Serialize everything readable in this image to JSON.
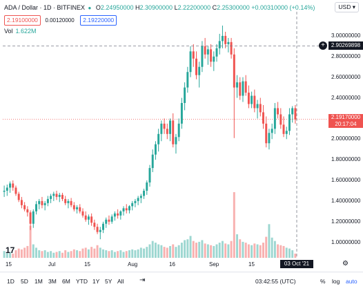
{
  "legend": {
    "symbol": "ADA / Dollar · 1D · BITFINEX",
    "o_label": "O",
    "o_value": "2.24950000",
    "h_label": "H",
    "h_value": "2.30900000",
    "l_label": "L",
    "l_value": "2.22200000",
    "c_label": "C",
    "c_value": "2.25300000",
    "change": "+0.00310000 (+0.14%)",
    "bid": "2.19100000",
    "spread": "0.00120000",
    "ask": "2.19220000",
    "vol_label": "Vol",
    "vol_value": "1.622M"
  },
  "currency": "USD ▾",
  "y_axis": {
    "ticks": [
      "3.00000000",
      "2.80000000",
      "2.60000000",
      "2.40000000",
      "2.20000000",
      "2.00000000",
      "1.80000000",
      "1.60000000",
      "1.40000000",
      "1.20000000",
      "1.00000000"
    ]
  },
  "crosshair": {
    "price": "2.90269898",
    "date": "03 Oct '21"
  },
  "last_price": {
    "price": "2.19170000",
    "countdown": "20:17:04"
  },
  "x_axis": {
    "ticks": [
      "15",
      "Jul",
      "15",
      "Aug",
      "16",
      "Sep",
      "15"
    ]
  },
  "bottom": {
    "timeframes": [
      "1D",
      "5D",
      "1M",
      "3M",
      "6M",
      "YTD",
      "1Y",
      "5Y",
      "All"
    ],
    "clock": "03:42:55 (UTC)",
    "percent": "%",
    "log": "log",
    "auto": "auto"
  },
  "colors": {
    "up": "#26a69a",
    "down": "#ef5350",
    "crosshair": "#787b86"
  },
  "chart_data": {
    "type": "candlestick",
    "ylim": [
      0.85,
      3.1
    ],
    "candles": [
      [
        1.49,
        1.55,
        1.44,
        1.5
      ],
      [
        1.5,
        1.56,
        1.45,
        1.53
      ],
      [
        1.53,
        1.59,
        1.48,
        1.57
      ],
      [
        1.57,
        1.6,
        1.5,
        1.53
      ],
      [
        1.53,
        1.55,
        1.45,
        1.47
      ],
      [
        1.47,
        1.49,
        1.39,
        1.41
      ],
      [
        1.41,
        1.44,
        1.33,
        1.36
      ],
      [
        1.36,
        1.39,
        1.3,
        1.32
      ],
      [
        1.32,
        1.35,
        1.25,
        1.29
      ],
      [
        1.29,
        1.31,
        1.12,
        1.18
      ],
      [
        1.18,
        1.32,
        1.14,
        1.3
      ],
      [
        1.3,
        1.4,
        1.27,
        1.37
      ],
      [
        1.37,
        1.42,
        1.32,
        1.4
      ],
      [
        1.4,
        1.44,
        1.33,
        1.36
      ],
      [
        1.36,
        1.4,
        1.31,
        1.38
      ],
      [
        1.38,
        1.45,
        1.35,
        1.42
      ],
      [
        1.42,
        1.47,
        1.38,
        1.45
      ],
      [
        1.45,
        1.49,
        1.4,
        1.47
      ],
      [
        1.47,
        1.5,
        1.41,
        1.44
      ],
      [
        1.44,
        1.48,
        1.39,
        1.46
      ],
      [
        1.46,
        1.48,
        1.4,
        1.42
      ],
      [
        1.42,
        1.45,
        1.36,
        1.38
      ],
      [
        1.38,
        1.42,
        1.33,
        1.4
      ],
      [
        1.4,
        1.43,
        1.34,
        1.36
      ],
      [
        1.36,
        1.39,
        1.3,
        1.32
      ],
      [
        1.32,
        1.36,
        1.28,
        1.34
      ],
      [
        1.34,
        1.37,
        1.28,
        1.3
      ],
      [
        1.3,
        1.33,
        1.24,
        1.26
      ],
      [
        1.26,
        1.3,
        1.2,
        1.22
      ],
      [
        1.22,
        1.27,
        1.17,
        1.25
      ],
      [
        1.25,
        1.28,
        1.16,
        1.19
      ],
      [
        1.19,
        1.22,
        1.12,
        1.15
      ],
      [
        1.15,
        1.18,
        1.08,
        1.1
      ],
      [
        1.1,
        1.15,
        1.03,
        1.12
      ],
      [
        1.12,
        1.2,
        1.09,
        1.18
      ],
      [
        1.18,
        1.24,
        1.14,
        1.22
      ],
      [
        1.22,
        1.26,
        1.17,
        1.2
      ],
      [
        1.2,
        1.27,
        1.18,
        1.25
      ],
      [
        1.25,
        1.3,
        1.21,
        1.28
      ],
      [
        1.28,
        1.32,
        1.23,
        1.26
      ],
      [
        1.26,
        1.31,
        1.22,
        1.3
      ],
      [
        1.3,
        1.35,
        1.26,
        1.33
      ],
      [
        1.33,
        1.37,
        1.28,
        1.31
      ],
      [
        1.31,
        1.36,
        1.28,
        1.35
      ],
      [
        1.35,
        1.4,
        1.31,
        1.38
      ],
      [
        1.38,
        1.42,
        1.34,
        1.4
      ],
      [
        1.4,
        1.45,
        1.36,
        1.43
      ],
      [
        1.43,
        1.47,
        1.38,
        1.45
      ],
      [
        1.45,
        1.52,
        1.42,
        1.5
      ],
      [
        1.5,
        1.6,
        1.46,
        1.58
      ],
      [
        1.58,
        1.75,
        1.54,
        1.72
      ],
      [
        1.72,
        1.9,
        1.68,
        1.85
      ],
      [
        1.85,
        1.98,
        1.8,
        1.95
      ],
      [
        1.95,
        2.1,
        1.88,
        2.05
      ],
      [
        2.05,
        2.18,
        1.98,
        2.15
      ],
      [
        2.15,
        2.2,
        2.05,
        2.1
      ],
      [
        2.1,
        2.15,
        2.0,
        2.05
      ],
      [
        2.05,
        2.2,
        1.98,
        2.18
      ],
      [
        2.18,
        2.25,
        1.92,
        1.95
      ],
      [
        1.95,
        2.05,
        1.86,
        2.02
      ],
      [
        2.02,
        2.2,
        1.98,
        2.15
      ],
      [
        2.15,
        2.4,
        2.1,
        2.35
      ],
      [
        2.35,
        2.55,
        2.28,
        2.5
      ],
      [
        2.5,
        2.7,
        2.45,
        2.65
      ],
      [
        2.65,
        2.9,
        2.6,
        2.85
      ],
      [
        2.85,
        2.92,
        2.7,
        2.78
      ],
      [
        2.78,
        2.85,
        2.58,
        2.62
      ],
      [
        2.62,
        2.75,
        2.5,
        2.7
      ],
      [
        2.7,
        2.95,
        2.65,
        2.9
      ],
      [
        2.9,
        2.98,
        2.78,
        2.82
      ],
      [
        2.82,
        2.9,
        2.72,
        2.87
      ],
      [
        2.87,
        2.92,
        2.7,
        2.75
      ],
      [
        2.75,
        2.85,
        2.66,
        2.8
      ],
      [
        2.8,
        2.92,
        2.75,
        2.88
      ],
      [
        2.88,
        3.02,
        2.82,
        2.95
      ],
      [
        2.95,
        3.1,
        2.88,
        3.0
      ],
      [
        3.0,
        3.04,
        2.88,
        2.92
      ],
      [
        2.92,
        2.98,
        2.84,
        2.94
      ],
      [
        2.94,
        2.98,
        2.78,
        2.82
      ],
      [
        2.82,
        2.88,
        2.01,
        2.5
      ],
      [
        2.5,
        2.62,
        2.4,
        2.55
      ],
      [
        2.55,
        2.6,
        2.38,
        2.42
      ],
      [
        2.42,
        2.6,
        2.36,
        2.56
      ],
      [
        2.56,
        2.62,
        2.42,
        2.45
      ],
      [
        2.45,
        2.52,
        2.3,
        2.34
      ],
      [
        2.34,
        2.46,
        2.3,
        2.42
      ],
      [
        2.42,
        2.48,
        2.26,
        2.3
      ],
      [
        2.3,
        2.38,
        2.2,
        2.34
      ],
      [
        2.34,
        2.4,
        2.22,
        2.26
      ],
      [
        2.26,
        2.33,
        2.1,
        2.15
      ],
      [
        2.15,
        2.22,
        1.92,
        1.96
      ],
      [
        1.96,
        2.1,
        1.9,
        2.06
      ],
      [
        2.06,
        2.15,
        2.0,
        2.1
      ],
      [
        2.1,
        2.35,
        2.05,
        2.3
      ],
      [
        2.3,
        2.36,
        2.2,
        2.24
      ],
      [
        2.24,
        2.3,
        2.1,
        2.14
      ],
      [
        2.14,
        2.22,
        2.02,
        2.05
      ],
      [
        2.05,
        2.12,
        2.0,
        2.08
      ],
      [
        2.08,
        2.3,
        2.04,
        2.24
      ],
      [
        2.24,
        2.32,
        2.16,
        2.3
      ],
      [
        2.3,
        2.33,
        2.15,
        2.19
      ]
    ],
    "volumes": [
      0.8,
      0.6,
      0.7,
      0.5,
      0.9,
      1.1,
      1.0,
      1.2,
      1.4,
      3.8,
      1.6,
      1.2,
      0.9,
      0.8,
      0.9,
      0.7,
      0.8,
      0.6,
      0.7,
      0.8,
      0.6,
      0.9,
      0.7,
      0.8,
      1.0,
      0.9,
      0.8,
      1.1,
      1.2,
      1.0,
      1.3,
      1.1,
      1.5,
      1.2,
      1.0,
      0.9,
      0.8,
      0.9,
      0.7,
      0.8,
      0.9,
      0.7,
      0.8,
      0.9,
      1.0,
      0.9,
      1.0,
      1.2,
      1.1,
      1.3,
      1.6,
      2.0,
      1.8,
      1.6,
      1.5,
      1.3,
      1.2,
      1.4,
      1.6,
      1.3,
      1.5,
      1.8,
      2.1,
      2.2,
      2.6,
      2.0,
      1.8,
      1.9,
      2.1,
      1.7,
      1.6,
      1.5,
      1.4,
      1.6,
      1.8,
      2.0,
      1.7,
      1.6,
      2.0,
      7.8,
      2.8,
      2.2,
      1.9,
      1.8,
      1.6,
      1.5,
      1.7,
      1.6,
      1.5,
      1.8,
      2.5,
      4.0,
      2.4,
      2.0,
      1.6,
      1.5,
      1.4,
      1.2,
      1.1,
      0.9,
      0.5
    ]
  }
}
